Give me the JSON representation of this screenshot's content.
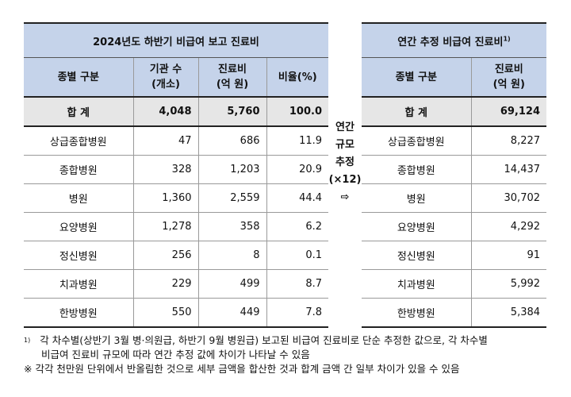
{
  "left": {
    "title": "2024년도 하반기 비급여 보고 진료비",
    "headers": {
      "category": "종별 구분",
      "count_line1": "기관 수",
      "count_line2": "(개소)",
      "cost_line1": "진료비",
      "cost_line2": "(억 원)",
      "ratio": "비율(%)"
    },
    "total": {
      "label": "합  계",
      "count": "4,048",
      "cost": "5,760",
      "ratio": "100.0"
    },
    "rows": [
      {
        "label": "상급종합병원",
        "count": "47",
        "cost": "686",
        "ratio": "11.9"
      },
      {
        "label": "종합병원",
        "count": "328",
        "cost": "1,203",
        "ratio": "20.9"
      },
      {
        "label": "병원",
        "count": "1,360",
        "cost": "2,559",
        "ratio": "44.4"
      },
      {
        "label": "요양병원",
        "count": "1,278",
        "cost": "358",
        "ratio": "6.2"
      },
      {
        "label": "정신병원",
        "count": "256",
        "cost": "8",
        "ratio": "0.1"
      },
      {
        "label": "치과병원",
        "count": "229",
        "cost": "499",
        "ratio": "8.7"
      },
      {
        "label": "한방병원",
        "count": "550",
        "cost": "449",
        "ratio": "7.8"
      }
    ]
  },
  "middle": {
    "line1": "연간",
    "line2": "규모",
    "line3": "추정",
    "line4": "(×12)",
    "arrow": "⇨"
  },
  "right": {
    "title": "연간 추정 비급여 진료비",
    "title_sup": "1)",
    "headers": {
      "category": "종별 구분",
      "cost_line1": "진료비",
      "cost_line2": "(억 원)"
    },
    "total": {
      "label": "합  계",
      "cost": "69,124"
    },
    "rows": [
      {
        "label": "상급종합병원",
        "cost": "8,227"
      },
      {
        "label": "종합병원",
        "cost": "14,437"
      },
      {
        "label": "병원",
        "cost": "30,702"
      },
      {
        "label": "요양병원",
        "cost": "4,292"
      },
      {
        "label": "정신병원",
        "cost": "91"
      },
      {
        "label": "치과병원",
        "cost": "5,992"
      },
      {
        "label": "한방병원",
        "cost": "5,384"
      }
    ]
  },
  "notes": {
    "fn_mark": "1)",
    "line1": "각 차수별(상반기 3월 병·의원급, 하반기 9월 병원급) 보고된 비급여 진료비로 단순 추정한 값으로, 각 차수별",
    "line2": "비급여 진료비 규모에 따라 연간 추정 값에 차이가 나타날 수 있음",
    "line3": "※ 각각 천만원 단위에서 반올림한 것으로 세부 금액을 합산한 것과 합계 금액 간 일부 차이가 있을 수 있음"
  }
}
